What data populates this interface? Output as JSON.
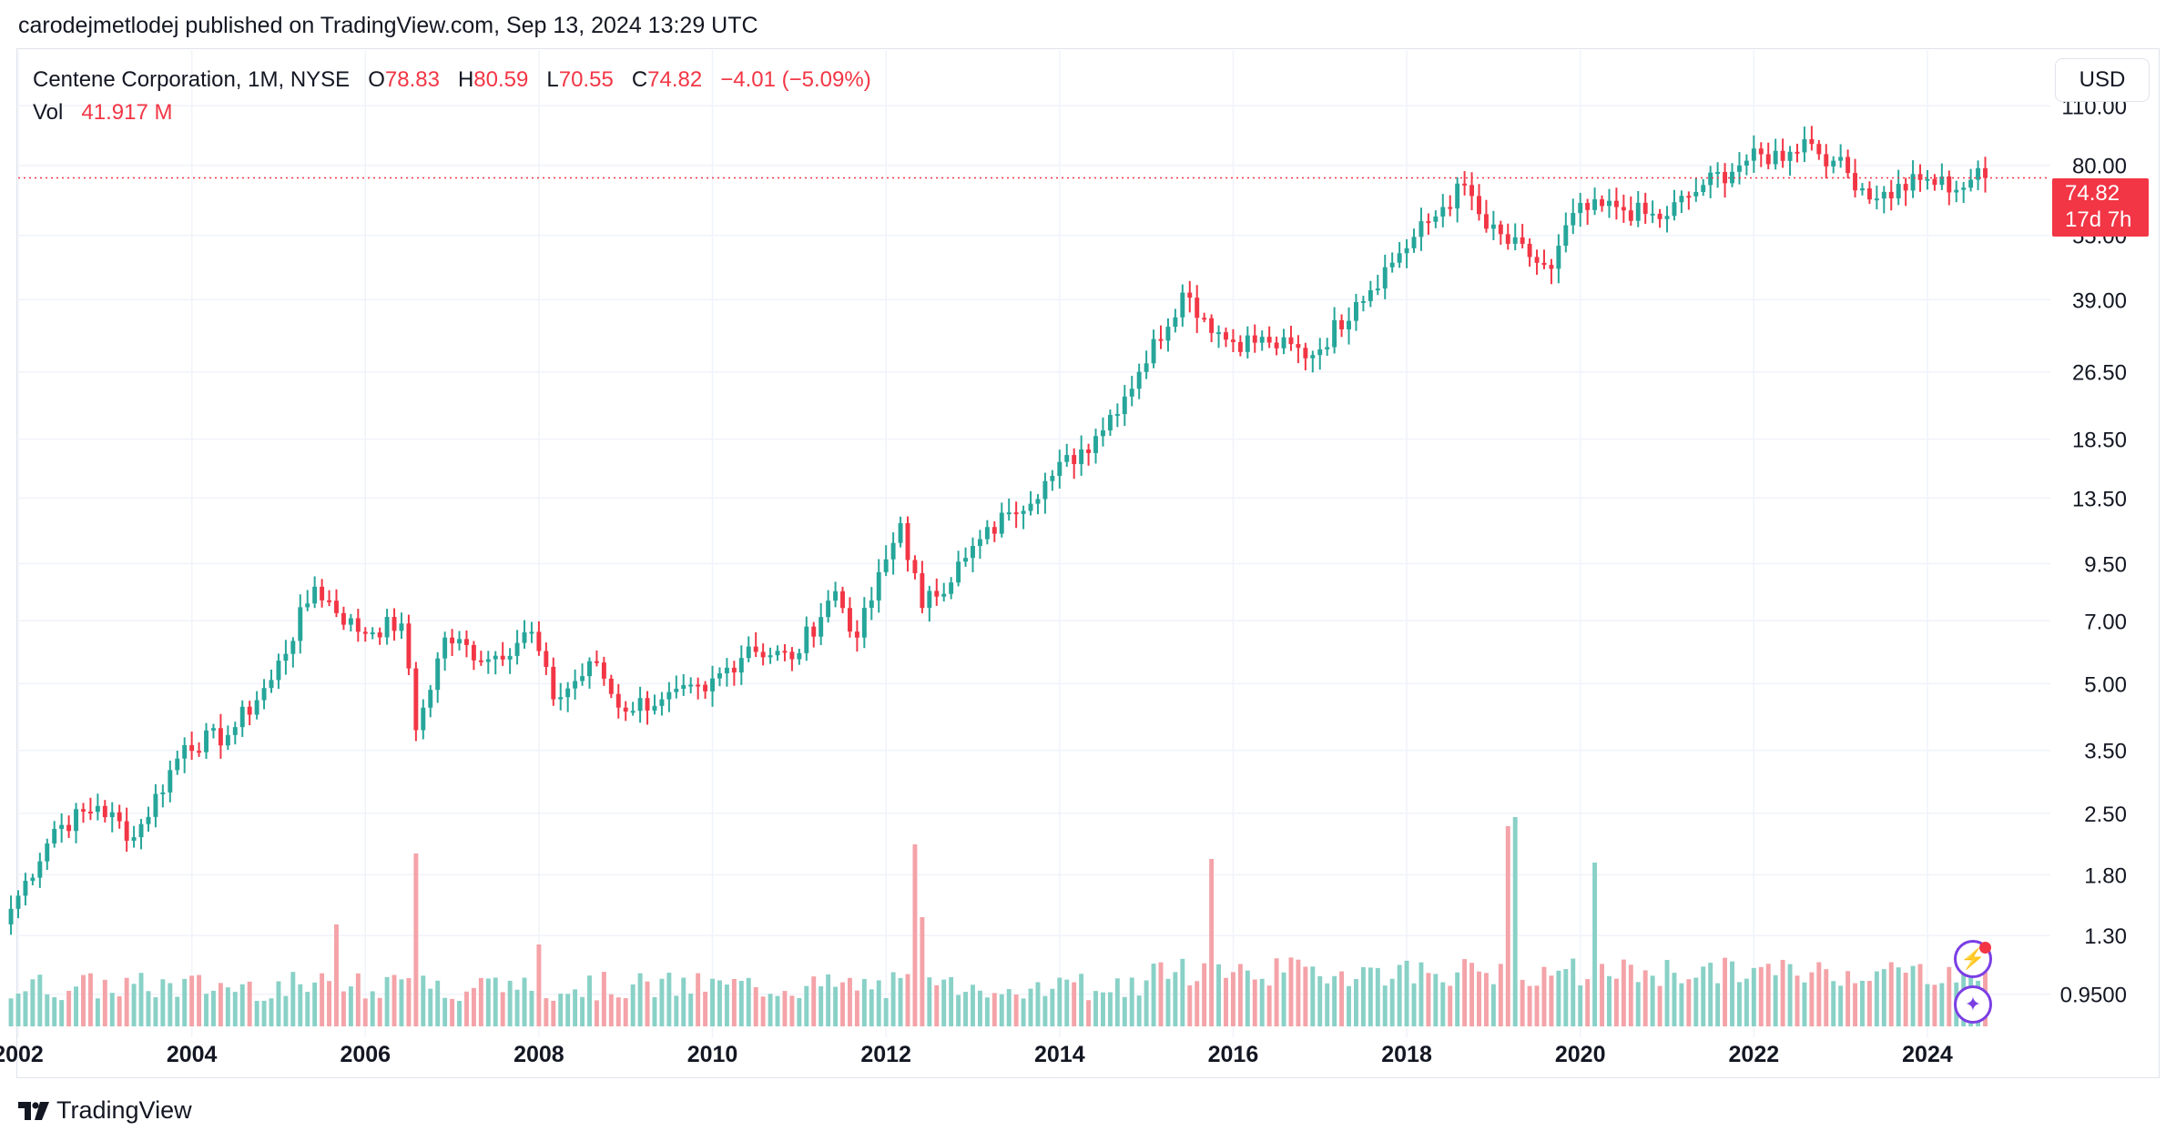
{
  "header": {
    "text": "carodejmetlodej published on TradingView.com, Sep 13, 2024 13:29 UTC"
  },
  "legend": {
    "symbol": "Centene Corporation, 1M, NYSE",
    "o_label": "O",
    "o_value": "78.83",
    "h_label": "H",
    "h_value": "80.59",
    "l_label": "L",
    "l_value": "70.55",
    "c_label": "C",
    "c_value": "74.82",
    "change": "−4.01 (−5.09%)",
    "vol_label": "Vol",
    "vol_value": "41.917 M"
  },
  "currency": "USD",
  "price_tag": {
    "price": "74.82",
    "countdown": "17d 7h"
  },
  "footer": {
    "brand": "TradingView"
  },
  "colors": {
    "up": "#26a69a",
    "down": "#f23645",
    "up_vol": "#89d1c7",
    "down_vol": "#f4a3a8",
    "grid": "#f0f3fa"
  },
  "icons": {
    "flash": "lightning-icon",
    "assist": "sparkle-icon",
    "logo": "tradingview-logo-icon"
  },
  "chart_data": {
    "type": "candlestick",
    "scale": "log",
    "ylim": [
      0.8,
      125
    ],
    "xlim": [
      "2002-01",
      "2025-06"
    ],
    "y_ticks": [
      "110.00",
      "80.00",
      "55.00",
      "39.00",
      "26.50",
      "18.50",
      "13.50",
      "9.50",
      "7.00",
      "5.00",
      "3.50",
      "2.50",
      "1.80",
      "1.30",
      "0.9500"
    ],
    "x_ticks": [
      "2002",
      "2004",
      "2006",
      "2008",
      "2010",
      "2012",
      "2014",
      "2016",
      "2018",
      "2020",
      "2022",
      "2024"
    ],
    "last_price": 74.82,
    "anchors": [
      [
        "2001-12",
        1.5
      ],
      [
        "2002-06",
        2.3
      ],
      [
        "2002-12",
        2.6
      ],
      [
        "2003-05",
        2.2
      ],
      [
        "2003-12",
        3.6
      ],
      [
        "2004-06",
        3.8
      ],
      [
        "2004-12",
        5.1
      ],
      [
        "2005-06",
        8.4
      ],
      [
        "2005-12",
        6.6
      ],
      [
        "2006-06",
        6.9
      ],
      [
        "2006-08",
        3.9
      ],
      [
        "2006-12",
        6.4
      ],
      [
        "2007-06",
        5.7
      ],
      [
        "2007-12",
        6.6
      ],
      [
        "2008-03",
        4.6
      ],
      [
        "2008-09",
        5.6
      ],
      [
        "2008-12",
        4.4
      ],
      [
        "2009-06",
        4.6
      ],
      [
        "2009-12",
        4.8
      ],
      [
        "2010-06",
        6.1
      ],
      [
        "2010-12",
        5.7
      ],
      [
        "2011-06",
        8.2
      ],
      [
        "2011-09",
        6.4
      ],
      [
        "2012-03",
        11.8
      ],
      [
        "2012-06",
        7.5
      ],
      [
        "2012-12",
        9.8
      ],
      [
        "2013-06",
        12.5
      ],
      [
        "2013-12",
        15.2
      ],
      [
        "2014-06",
        18.8
      ],
      [
        "2014-12",
        26.5
      ],
      [
        "2015-06",
        40.5
      ],
      [
        "2015-12",
        31.5
      ],
      [
        "2016-06",
        31.0
      ],
      [
        "2016-12",
        29.0
      ],
      [
        "2017-06",
        38.5
      ],
      [
        "2017-12",
        50.0
      ],
      [
        "2018-06",
        64.0
      ],
      [
        "2018-09",
        72.0
      ],
      [
        "2018-12",
        57.0
      ],
      [
        "2019-06",
        49.0
      ],
      [
        "2019-09",
        46.0
      ],
      [
        "2019-12",
        62.0
      ],
      [
        "2020-06",
        64.0
      ],
      [
        "2020-12",
        60.0
      ],
      [
        "2021-06",
        72.0
      ],
      [
        "2021-12",
        82.0
      ],
      [
        "2022-06",
        86.0
      ],
      [
        "2022-08",
        92.0
      ],
      [
        "2022-12",
        82.0
      ],
      [
        "2023-06",
        67.0
      ],
      [
        "2023-12",
        74.0
      ],
      [
        "2024-06",
        71.0
      ],
      [
        "2024-08",
        78.8
      ],
      [
        "2024-09",
        74.82
      ]
    ],
    "volume_ylim": [
      0,
      135
    ],
    "volume_spikes": [
      [
        "2006-08",
        95
      ],
      [
        "2012-05",
        100
      ],
      [
        "2015-10",
        92
      ],
      [
        "2019-03",
        110
      ],
      [
        "2019-04",
        115
      ],
      [
        "2020-03",
        90
      ],
      [
        "2008-01",
        45
      ],
      [
        "2005-09",
        56
      ],
      [
        "2012-06",
        60
      ]
    ]
  }
}
